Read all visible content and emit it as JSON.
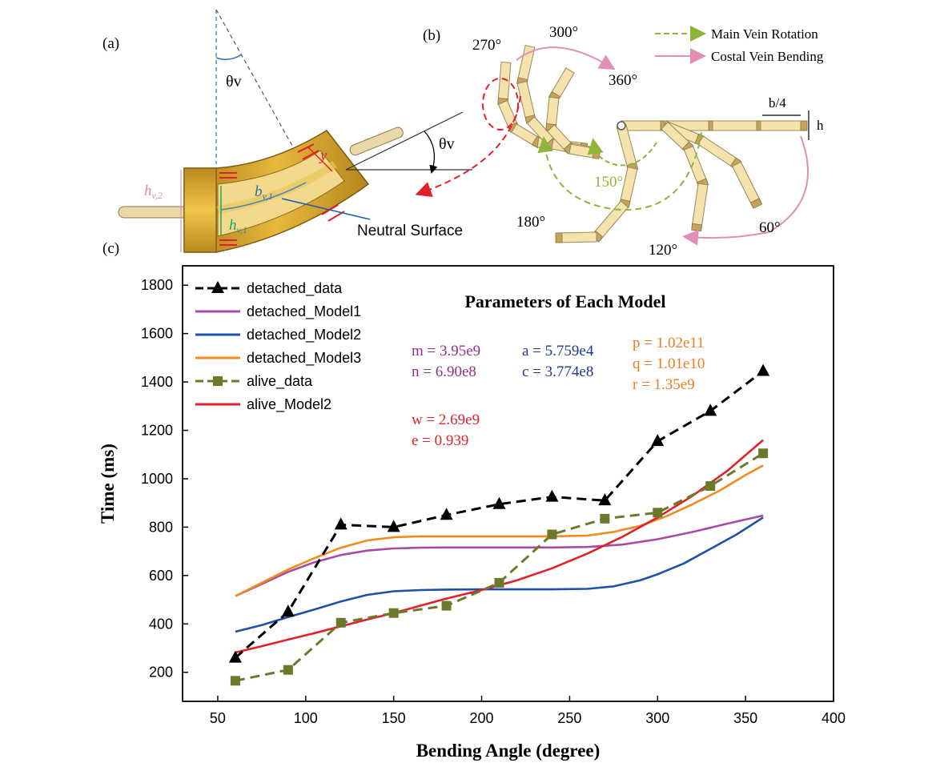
{
  "panels": {
    "a": {
      "label": "(a)",
      "theta": "θv",
      "theta_right": "θv",
      "y_label": "y",
      "h_v2": "h",
      "h_v2_sub": "v,2",
      "b_v1": "b",
      "b_v1_sub": "v,1",
      "h_v1": "h",
      "h_v1_sub": "v,1",
      "neutral_surface": "Neutral Surface"
    },
    "b": {
      "label": "(b)",
      "legend": [
        "Main Vein Rotation",
        "Costal Vein Bending"
      ],
      "angles": [
        "270°",
        "300°",
        "360°",
        "150°",
        "180°",
        "120°",
        "60°"
      ],
      "b4": "b/4",
      "h": "h"
    },
    "c": {
      "label": "(c)"
    }
  },
  "chart_data": {
    "type": "line",
    "title": "Parameters of Each Model",
    "xlabel": "Bending Angle (degree)",
    "ylabel": "Time (ms)",
    "xlim": [
      30,
      400
    ],
    "ylim": [
      80,
      1880
    ],
    "xticks": [
      50,
      100,
      150,
      200,
      250,
      300,
      350,
      400
    ],
    "yticks": [
      200,
      400,
      600,
      800,
      1000,
      1200,
      1400,
      1600,
      1800
    ],
    "grid": false,
    "legend_position": "top-left",
    "colors": {
      "detached_data": "#000000",
      "detached_Model1": "#a64ca6",
      "detached_Model2": "#1f4fa8",
      "detached_Model3": "#f28a1e",
      "alive_data": "#6b7a2a",
      "alive_Model2": "#e3202a"
    },
    "series": [
      {
        "name": "detached_data",
        "style": "dashed-triangle",
        "x": [
          60,
          90,
          120,
          150,
          180,
          210,
          240,
          270,
          300,
          330,
          360
        ],
        "y": [
          260,
          450,
          810,
          800,
          850,
          895,
          925,
          910,
          1155,
          1280,
          1445
        ]
      },
      {
        "name": "detached_Model1",
        "style": "solid",
        "x": [
          60,
          75,
          90,
          105,
          120,
          135,
          150,
          165,
          180,
          200,
          220,
          240,
          260,
          280,
          300,
          320,
          340,
          360
        ],
        "y": [
          515,
          565,
          615,
          655,
          685,
          703,
          712,
          715,
          716,
          716,
          716,
          716,
          718,
          728,
          750,
          780,
          815,
          848
        ]
      },
      {
        "name": "detached_Model2",
        "style": "solid",
        "x": [
          60,
          75,
          90,
          105,
          120,
          135,
          150,
          165,
          180,
          200,
          220,
          240,
          260,
          275,
          290,
          300,
          315,
          330,
          345,
          360
        ],
        "y": [
          368,
          395,
          428,
          460,
          493,
          520,
          535,
          540,
          542,
          543,
          543,
          543,
          545,
          555,
          580,
          605,
          650,
          710,
          770,
          840
        ]
      },
      {
        "name": "detached_Model3",
        "style": "solid",
        "x": [
          60,
          75,
          90,
          105,
          120,
          135,
          150,
          165,
          180,
          200,
          220,
          240,
          260,
          275,
          290,
          305,
          320,
          335,
          350,
          360
        ],
        "y": [
          515,
          570,
          625,
          672,
          715,
          745,
          758,
          762,
          762,
          762,
          762,
          762,
          765,
          780,
          805,
          845,
          895,
          950,
          1015,
          1055
        ]
      },
      {
        "name": "alive_data",
        "style": "dashed-square",
        "x": [
          60,
          90,
          120,
          150,
          180,
          210,
          240,
          270,
          300,
          330,
          360
        ],
        "y": [
          165,
          210,
          405,
          445,
          475,
          570,
          770,
          835,
          860,
          970,
          1105
        ]
      },
      {
        "name": "alive_Model2",
        "style": "solid",
        "x": [
          60,
          75,
          90,
          105,
          120,
          135,
          150,
          165,
          180,
          200,
          220,
          240,
          260,
          280,
          300,
          320,
          340,
          360
        ],
        "y": [
          282,
          308,
          335,
          362,
          390,
          418,
          445,
          475,
          505,
          540,
          580,
          630,
          690,
          760,
          840,
          930,
          1035,
          1160
        ]
      }
    ],
    "annotations": [
      {
        "lines": [
          "m = 3.95e9",
          "n = 6.90e8"
        ],
        "color": "#93308f"
      },
      {
        "lines": [
          "a = 5.759e4",
          "c = 3.774e8"
        ],
        "color": "#1d3a8a"
      },
      {
        "lines": [
          "p = 1.02e11",
          "q = 1.01e10",
          "r = 1.35e9"
        ],
        "color": "#ef7d1a"
      },
      {
        "lines": [
          "w = 2.69e9",
          "e = 0.939"
        ],
        "color": "#e3202a"
      }
    ]
  }
}
